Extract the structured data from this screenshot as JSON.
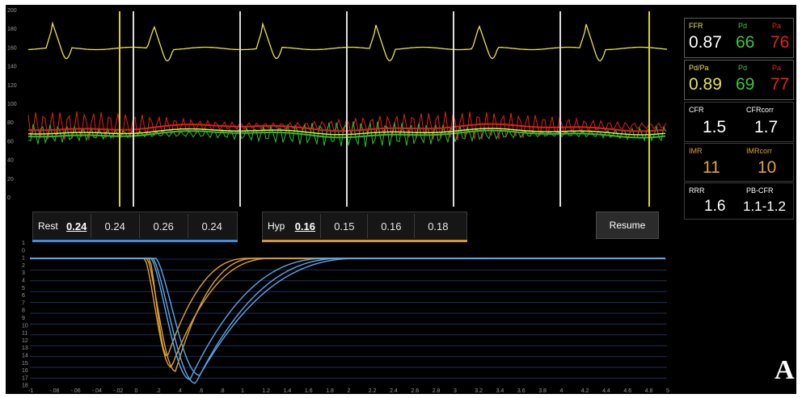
{
  "pressure_axis_ticks": [
    "200",
    "180",
    "160",
    "140",
    "120",
    "100",
    "80",
    "60",
    "40",
    "20",
    "0"
  ],
  "rest": {
    "label": "Rest",
    "values": [
      "0.24",
      "0.24",
      "0.26",
      "0.24"
    ],
    "underline_color": "#3f8fe0"
  },
  "hyp": {
    "label": "Hyp",
    "values": [
      "0.16",
      "0.15",
      "0.16",
      "0.18"
    ],
    "underline_color": "#d9962b"
  },
  "resume_label": "Resume",
  "metrics": {
    "ffr": {
      "label": "FFR",
      "value": "0.87",
      "pd_label": "Pd",
      "pd_value": "66",
      "pa_label": "Pa",
      "pa_value": "76"
    },
    "pdpa": {
      "label": "Pd/Pa",
      "value": "0.89",
      "pd_label": "Pd",
      "pd_value": "69",
      "pa_label": "Pa",
      "pa_value": "77"
    },
    "cfr": {
      "label": "CFR",
      "value": "1.5",
      "corr_label": "CFRcorr",
      "corr_value": "1.7"
    },
    "imr": {
      "label": "IMR",
      "value": "11",
      "corr_label": "IMRcorr",
      "corr_value": "10"
    },
    "rrr": {
      "label": "RRR",
      "value": "1.6",
      "pb_label": "PB-CFR",
      "pb_value": "1.1-1.2"
    }
  },
  "thermo_y_ticks": [
    "1",
    "0",
    "1",
    "2",
    "3",
    "4",
    "5",
    "6",
    "7",
    "8",
    "9",
    "10",
    "11",
    "12",
    "13",
    "14",
    "15",
    "16",
    "17",
    "18"
  ],
  "thermo_x_ticks": [
    "-1",
    "-.08",
    "-.06",
    "-.04",
    "-.02",
    "0",
    ".2",
    ".4",
    ".6",
    ".8",
    "1",
    "1.2",
    "1.4",
    "1.6",
    "1.8",
    "2",
    "2.2",
    "2.4",
    "2.6",
    "2.8",
    "3",
    "3.2",
    "3.4",
    "3.6",
    "3.8",
    "4",
    "4.2",
    "4.4",
    "4.6",
    "4.8",
    "5"
  ],
  "panel_letter": "A",
  "colors": {
    "aortic_trace": "#e8e34a",
    "red_trace": "#e4201a",
    "green_trace": "#2fbf2f",
    "rest_curve": "#5aa6e8",
    "hyp_curve": "#e0a030",
    "ffr_label": "#e8e34a",
    "pd_color": "#3cc83c",
    "pa_color": "#e3241c",
    "imr_color": "#e3a23a"
  }
}
